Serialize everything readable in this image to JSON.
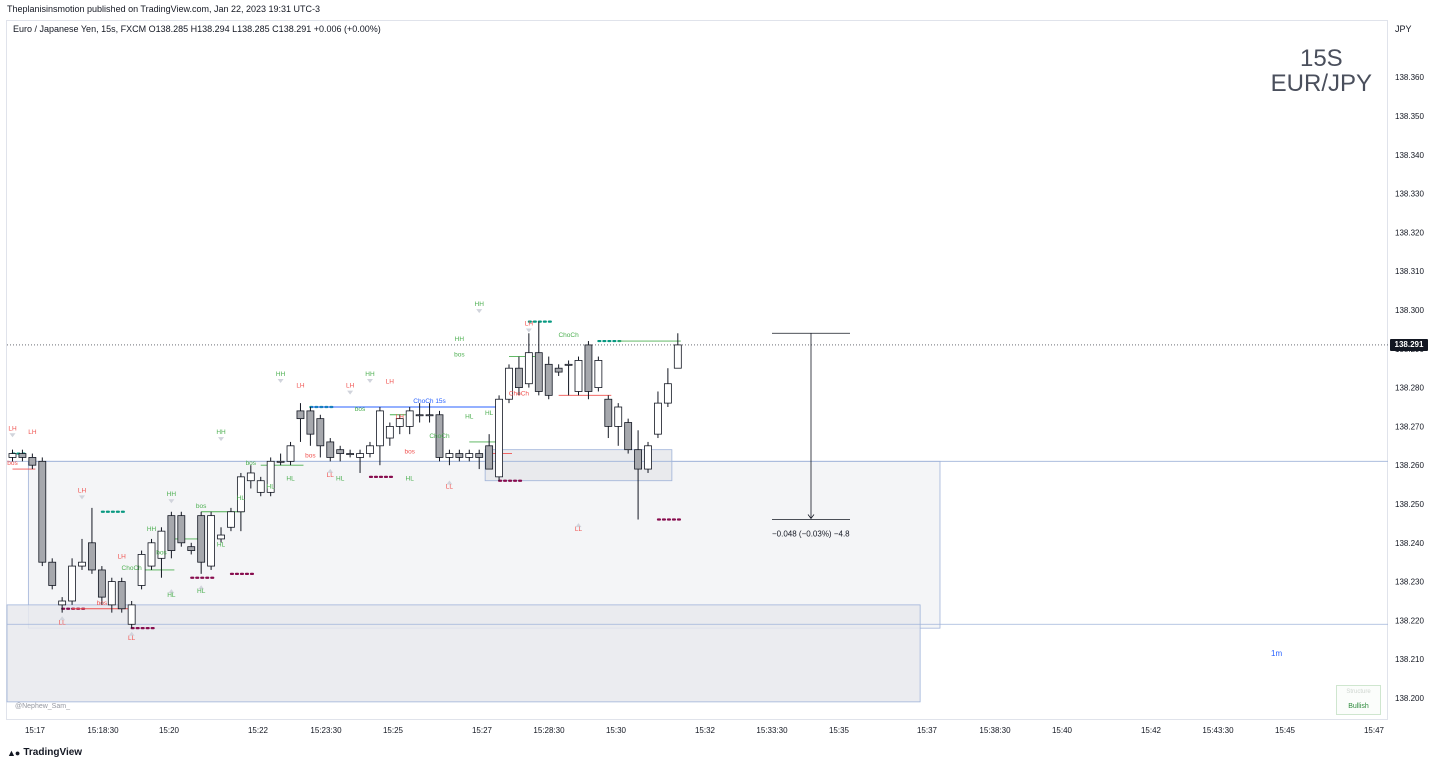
{
  "header": {
    "published_text": "Theplanisinsmotion published on TradingView.com, Jan 22, 2023 19:31 UTC-3",
    "legend_text": "Euro / Japanese Yen, 15s, FXCM  O138.285  H138.294  L138.285  C138.291  +0.006 (+0.00%)"
  },
  "watermark": {
    "line1": "15S",
    "line2": "EUR/JPY"
  },
  "y_axis": {
    "unit": "JPY",
    "current_price_label": "138.291"
  },
  "measure_label": "−0.048 (−0.03%) −4.8",
  "timeframe_label": "1m",
  "status_box": {
    "line1": "Structure",
    "line2": "Bullish"
  },
  "credit": "@Nephew_Sam_",
  "footer": {
    "brand": "TradingView",
    "logo_icon": "tradingview-logo-icon"
  },
  "colors": {
    "bull": "#ffffff",
    "bear": "#a6a8ad",
    "candle_border": "#131722",
    "green": "#4caf50",
    "red": "#f05350",
    "blue": "#2962ff",
    "zone": "#e9eaee"
  },
  "chart_data": {
    "type": "candlestick",
    "symbol": "EUR/JPY",
    "interval": "15s",
    "ylim": [
      138.195,
      138.372
    ],
    "y_ticks": [
      138.2,
      138.21,
      138.22,
      138.23,
      138.24,
      138.25,
      138.26,
      138.27,
      138.28,
      138.29,
      138.3,
      138.31,
      138.32,
      138.33,
      138.34,
      138.35,
      138.36
    ],
    "x_ticks": [
      "15:17",
      "15:18:30",
      "15:20",
      "15:22",
      "15:23:30",
      "15:25",
      "15:27",
      "15:28:30",
      "15:30",
      "15:32",
      "15:33:30",
      "15:35",
      "15:37",
      "15:38:30",
      "15:40",
      "15:42",
      "15:43:30",
      "15:45",
      "15:47"
    ],
    "candles": [
      {
        "o": 138.262,
        "h": 138.264,
        "l": 138.261,
        "c": 138.263
      },
      {
        "o": 138.263,
        "h": 138.264,
        "l": 138.261,
        "c": 138.262
      },
      {
        "o": 138.262,
        "h": 138.263,
        "l": 138.259,
        "c": 138.26
      },
      {
        "o": 138.261,
        "h": 138.262,
        "l": 138.234,
        "c": 138.235
      },
      {
        "o": 138.235,
        "h": 138.236,
        "l": 138.228,
        "c": 138.229
      },
      {
        "o": 138.224,
        "h": 138.226,
        "l": 138.222,
        "c": 138.225
      },
      {
        "o": 138.225,
        "h": 138.236,
        "l": 138.224,
        "c": 138.234
      },
      {
        "o": 138.234,
        "h": 138.241,
        "l": 138.233,
        "c": 138.235
      },
      {
        "o": 138.24,
        "h": 138.249,
        "l": 138.232,
        "c": 138.233
      },
      {
        "o": 138.233,
        "h": 138.234,
        "l": 138.224,
        "c": 138.226
      },
      {
        "o": 138.224,
        "h": 138.231,
        "l": 138.222,
        "c": 138.23
      },
      {
        "o": 138.23,
        "h": 138.231,
        "l": 138.222,
        "c": 138.223
      },
      {
        "o": 138.219,
        "h": 138.225,
        "l": 138.218,
        "c": 138.224
      },
      {
        "o": 138.229,
        "h": 138.238,
        "l": 138.228,
        "c": 138.237
      },
      {
        "o": 138.234,
        "h": 138.241,
        "l": 138.233,
        "c": 138.24
      },
      {
        "o": 138.236,
        "h": 138.244,
        "l": 138.231,
        "c": 138.243
      },
      {
        "o": 138.247,
        "h": 138.248,
        "l": 138.236,
        "c": 138.238
      },
      {
        "o": 138.247,
        "h": 138.248,
        "l": 138.239,
        "c": 138.24
      },
      {
        "o": 138.239,
        "h": 138.24,
        "l": 138.237,
        "c": 138.238
      },
      {
        "o": 138.247,
        "h": 138.248,
        "l": 138.232,
        "c": 138.235
      },
      {
        "o": 138.234,
        "h": 138.248,
        "l": 138.233,
        "c": 138.247
      },
      {
        "o": 138.241,
        "h": 138.244,
        "l": 138.24,
        "c": 138.242
      },
      {
        "o": 138.244,
        "h": 138.249,
        "l": 138.243,
        "c": 138.248
      },
      {
        "o": 138.248,
        "h": 138.258,
        "l": 138.243,
        "c": 138.257
      },
      {
        "o": 138.256,
        "h": 138.26,
        "l": 138.254,
        "c": 138.258
      },
      {
        "o": 138.253,
        "h": 138.257,
        "l": 138.252,
        "c": 138.256
      },
      {
        "o": 138.253,
        "h": 138.262,
        "l": 138.252,
        "c": 138.261
      },
      {
        "o": 138.261,
        "h": 138.263,
        "l": 138.26,
        "c": 138.261
      },
      {
        "o": 138.261,
        "h": 138.266,
        "l": 138.26,
        "c": 138.265
      },
      {
        "o": 138.274,
        "h": 138.276,
        "l": 138.266,
        "c": 138.272
      },
      {
        "o": 138.274,
        "h": 138.275,
        "l": 138.265,
        "c": 138.268
      },
      {
        "o": 138.272,
        "h": 138.273,
        "l": 138.262,
        "c": 138.265
      },
      {
        "o": 138.266,
        "h": 138.267,
        "l": 138.261,
        "c": 138.262
      },
      {
        "o": 138.264,
        "h": 138.265,
        "l": 138.261,
        "c": 138.263
      },
      {
        "o": 138.263,
        "h": 138.264,
        "l": 138.262,
        "c": 138.263
      },
      {
        "o": 138.262,
        "h": 138.264,
        "l": 138.258,
        "c": 138.263
      },
      {
        "o": 138.263,
        "h": 138.266,
        "l": 138.262,
        "c": 138.265
      },
      {
        "o": 138.265,
        "h": 138.275,
        "l": 138.26,
        "c": 138.274
      },
      {
        "o": 138.267,
        "h": 138.271,
        "l": 138.265,
        "c": 138.27
      },
      {
        "o": 138.27,
        "h": 138.273,
        "l": 138.268,
        "c": 138.272
      },
      {
        "o": 138.27,
        "h": 138.275,
        "l": 138.268,
        "c": 138.274
      },
      {
        "o": 138.273,
        "h": 138.276,
        "l": 138.271,
        "c": 138.273
      },
      {
        "o": 138.273,
        "h": 138.276,
        "l": 138.271,
        "c": 138.273
      },
      {
        "o": 138.273,
        "h": 138.274,
        "l": 138.261,
        "c": 138.262
      },
      {
        "o": 138.262,
        "h": 138.264,
        "l": 138.26,
        "c": 138.263
      },
      {
        "o": 138.263,
        "h": 138.264,
        "l": 138.261,
        "c": 138.262
      },
      {
        "o": 138.262,
        "h": 138.264,
        "l": 138.261,
        "c": 138.263
      },
      {
        "o": 138.263,
        "h": 138.264,
        "l": 138.259,
        "c": 138.262
      },
      {
        "o": 138.265,
        "h": 138.268,
        "l": 138.259,
        "c": 138.259
      },
      {
        "o": 138.257,
        "h": 138.278,
        "l": 138.256,
        "c": 138.277
      },
      {
        "o": 138.277,
        "h": 138.286,
        "l": 138.276,
        "c": 138.285
      },
      {
        "o": 138.285,
        "h": 138.288,
        "l": 138.278,
        "c": 138.28
      },
      {
        "o": 138.281,
        "h": 138.294,
        "l": 138.28,
        "c": 138.289
      },
      {
        "o": 138.289,
        "h": 138.297,
        "l": 138.278,
        "c": 138.279
      },
      {
        "o": 138.286,
        "h": 138.288,
        "l": 138.277,
        "c": 138.278
      },
      {
        "o": 138.285,
        "h": 138.286,
        "l": 138.283,
        "c": 138.284
      },
      {
        "o": 138.286,
        "h": 138.287,
        "l": 138.278,
        "c": 138.286
      },
      {
        "o": 138.279,
        "h": 138.288,
        "l": 138.278,
        "c": 138.287
      },
      {
        "o": 138.291,
        "h": 138.292,
        "l": 138.277,
        "c": 138.279
      },
      {
        "o": 138.28,
        "h": 138.288,
        "l": 138.279,
        "c": 138.287
      },
      {
        "o": 138.277,
        "h": 138.278,
        "l": 138.267,
        "c": 138.27
      },
      {
        "o": 138.27,
        "h": 138.276,
        "l": 138.265,
        "c": 138.275
      },
      {
        "o": 138.271,
        "h": 138.272,
        "l": 138.263,
        "c": 138.264
      },
      {
        "o": 138.264,
        "h": 138.269,
        "l": 138.246,
        "c": 138.259
      },
      {
        "o": 138.259,
        "h": 138.266,
        "l": 138.258,
        "c": 138.265
      },
      {
        "o": 138.268,
        "h": 138.279,
        "l": 138.267,
        "c": 138.276
      },
      {
        "o": 138.276,
        "h": 138.285,
        "l": 138.275,
        "c": 138.281
      },
      {
        "o": 138.285,
        "h": 138.294,
        "l": 138.285,
        "c": 138.291
      }
    ],
    "current_price": 138.291,
    "zones": [
      {
        "from_bar": 2,
        "to_bar": 93,
        "top": 138.261,
        "bottom": 138.218
      },
      {
        "from_bar": -2,
        "to_bar": 91,
        "top": 138.224,
        "bottom": 138.199
      },
      {
        "from_bar": 48,
        "to_bar": 66,
        "top": 138.264,
        "bottom": 138.256
      }
    ],
    "levels": [
      {
        "from_bar": 0,
        "to_bar": 1,
        "price": 138.263,
        "color": "#089981",
        "style": "dots"
      },
      {
        "from_bar": 9,
        "to_bar": 11,
        "price": 138.248,
        "color": "#089981",
        "style": "dots"
      },
      {
        "from_bar": 5,
        "to_bar": 7,
        "price": 138.223,
        "color": "#880e4f",
        "style": "dots"
      },
      {
        "from_bar": 12,
        "to_bar": 14,
        "price": 138.218,
        "color": "#880e4f",
        "style": "dots"
      },
      {
        "from_bar": 18,
        "to_bar": 20,
        "price": 138.231,
        "color": "#880e4f",
        "style": "dots"
      },
      {
        "from_bar": 22,
        "to_bar": 24,
        "price": 138.232,
        "color": "#880e4f",
        "style": "dots"
      },
      {
        "from_bar": 30,
        "to_bar": 32,
        "price": 138.275,
        "color": "#089981",
        "style": "dots"
      },
      {
        "from_bar": 36,
        "to_bar": 38,
        "price": 138.257,
        "color": "#880e4f",
        "style": "dots"
      },
      {
        "from_bar": 49,
        "to_bar": 51,
        "price": 138.256,
        "color": "#880e4f",
        "style": "dots"
      },
      {
        "from_bar": 52,
        "to_bar": 54,
        "price": 138.297,
        "color": "#089981",
        "style": "dots"
      },
      {
        "from_bar": 59,
        "to_bar": 61,
        "price": 138.292,
        "color": "#089981",
        "style": "dots"
      },
      {
        "from_bar": 65,
        "to_bar": 67,
        "price": 138.246,
        "color": "#880e4f",
        "style": "dots"
      },
      {
        "from_bar": 0,
        "to_bar": 2,
        "price": 138.259,
        "color": "#f05350",
        "style": "solid"
      },
      {
        "from_bar": 6,
        "to_bar": 12,
        "price": 138.223,
        "color": "#f05350",
        "style": "solid"
      },
      {
        "from_bar": 13,
        "to_bar": 16,
        "price": 138.233,
        "color": "#4caf50",
        "style": "solid"
      },
      {
        "from_bar": 16,
        "to_bar": 19,
        "price": 138.241,
        "color": "#4caf50",
        "style": "solid"
      },
      {
        "from_bar": 19,
        "to_bar": 23,
        "price": 138.248,
        "color": "#4caf50",
        "style": "solid"
      },
      {
        "from_bar": 25,
        "to_bar": 29,
        "price": 138.26,
        "color": "#4caf50",
        "style": "solid"
      },
      {
        "from_bar": 30,
        "to_bar": 49,
        "price": 138.275,
        "color": "#2962ff",
        "style": "solid"
      },
      {
        "from_bar": 38,
        "to_bar": 40,
        "price": 138.273,
        "color": "#4caf50",
        "style": "solid"
      },
      {
        "from_bar": 46,
        "to_bar": 49,
        "price": 138.266,
        "color": "#4caf50",
        "style": "solid"
      },
      {
        "from_bar": 48,
        "to_bar": 50,
        "price": 138.263,
        "color": "#f05350",
        "style": "solid"
      },
      {
        "from_bar": 50,
        "to_bar": 53,
        "price": 138.288,
        "color": "#4caf50",
        "style": "solid"
      },
      {
        "from_bar": 55,
        "to_bar": 60,
        "price": 138.278,
        "color": "#f05350",
        "style": "solid"
      },
      {
        "from_bar": 61,
        "to_bar": 67,
        "price": 138.292,
        "color": "#4caf50",
        "style": "solid"
      }
    ],
    "annotations": [
      {
        "bar": 0,
        "price": 138.269,
        "text": "LH",
        "color": "#f05350",
        "marker": "down"
      },
      {
        "bar": 2,
        "price": 138.268,
        "text": "LH",
        "color": "#f05350"
      },
      {
        "bar": 0,
        "price": 138.26,
        "text": "bos",
        "color": "#f05350"
      },
      {
        "bar": 7,
        "price": 138.253,
        "text": "LH",
        "color": "#f05350",
        "marker": "down"
      },
      {
        "bar": 5,
        "price": 138.219,
        "text": "LL",
        "color": "#f05350",
        "marker": "up"
      },
      {
        "bar": 9,
        "price": 138.224,
        "text": "bos",
        "color": "#f05350"
      },
      {
        "bar": 11,
        "price": 138.236,
        "text": "LH",
        "color": "#f05350"
      },
      {
        "bar": 12,
        "price": 138.215,
        "text": "LL",
        "color": "#f05350",
        "marker": "up"
      },
      {
        "bar": 12,
        "price": 138.233,
        "text": "ChoCh",
        "color": "#4caf50"
      },
      {
        "bar": 14,
        "price": 138.243,
        "text": "HH",
        "color": "#4caf50"
      },
      {
        "bar": 15,
        "price": 138.237,
        "text": "bos",
        "color": "#4caf50"
      },
      {
        "bar": 16,
        "price": 138.252,
        "text": "HH",
        "color": "#4caf50",
        "marker": "down"
      },
      {
        "bar": 16,
        "price": 138.226,
        "text": "HL",
        "color": "#4caf50",
        "marker": "up"
      },
      {
        "bar": 19,
        "price": 138.249,
        "text": "bos",
        "color": "#4caf50"
      },
      {
        "bar": 19,
        "price": 138.227,
        "text": "HL",
        "color": "#4caf50",
        "marker": "up"
      },
      {
        "bar": 21,
        "price": 138.239,
        "text": "HL",
        "color": "#4caf50"
      },
      {
        "bar": 21,
        "price": 138.268,
        "text": "HH",
        "color": "#4caf50",
        "marker": "down"
      },
      {
        "bar": 23,
        "price": 138.251,
        "text": "HL",
        "color": "#4caf50"
      },
      {
        "bar": 24,
        "price": 138.26,
        "text": "bos",
        "color": "#4caf50"
      },
      {
        "bar": 26,
        "price": 138.254,
        "text": "HL",
        "color": "#4caf50"
      },
      {
        "bar": 27,
        "price": 138.283,
        "text": "HH",
        "color": "#4caf50",
        "marker": "down"
      },
      {
        "bar": 28,
        "price": 138.256,
        "text": "HL",
        "color": "#4caf50"
      },
      {
        "bar": 29,
        "price": 138.28,
        "text": "LH",
        "color": "#f05350"
      },
      {
        "bar": 30,
        "price": 138.262,
        "text": "bos",
        "color": "#f05350"
      },
      {
        "bar": 32,
        "price": 138.257,
        "text": "LL",
        "color": "#f05350",
        "marker": "up"
      },
      {
        "bar": 33,
        "price": 138.256,
        "text": "HL",
        "color": "#4caf50"
      },
      {
        "bar": 34,
        "price": 138.28,
        "text": "LH",
        "color": "#f05350",
        "marker": "down"
      },
      {
        "bar": 35,
        "price": 138.274,
        "text": "bos",
        "color": "#4caf50"
      },
      {
        "bar": 36,
        "price": 138.283,
        "text": "HH",
        "color": "#4caf50",
        "marker": "down"
      },
      {
        "bar": 38,
        "price": 138.281,
        "text": "LH",
        "color": "#f05350"
      },
      {
        "bar": 39,
        "price": 138.272,
        "text": "LH",
        "color": "#f05350"
      },
      {
        "bar": 40,
        "price": 138.256,
        "text": "HL",
        "color": "#4caf50"
      },
      {
        "bar": 40,
        "price": 138.263,
        "text": "bos",
        "color": "#f05350"
      },
      {
        "bar": 42,
        "price": 138.276,
        "text": "ChoCh 15s",
        "color": "#2962ff"
      },
      {
        "bar": 43,
        "price": 138.267,
        "text": "ChoCh",
        "color": "#4caf50"
      },
      {
        "bar": 44,
        "price": 138.254,
        "text": "LL",
        "color": "#f05350",
        "marker": "up"
      },
      {
        "bar": 45,
        "price": 138.288,
        "text": "bos",
        "color": "#4caf50"
      },
      {
        "bar": 45,
        "price": 138.292,
        "text": "HH",
        "color": "#4caf50"
      },
      {
        "bar": 46,
        "price": 138.272,
        "text": "HL",
        "color": "#4caf50"
      },
      {
        "bar": 47,
        "price": 138.301,
        "text": "HH",
        "color": "#4caf50",
        "marker": "down"
      },
      {
        "bar": 48,
        "price": 138.273,
        "text": "HL",
        "color": "#4caf50"
      },
      {
        "bar": 51,
        "price": 138.278,
        "text": "ChoCh",
        "color": "#f05350"
      },
      {
        "bar": 52,
        "price": 138.296,
        "text": "LH",
        "color": "#f05350",
        "marker": "down"
      },
      {
        "bar": 56,
        "price": 138.293,
        "text": "ChoCh",
        "color": "#4caf50"
      },
      {
        "bar": 57,
        "price": 138.243,
        "text": "LL",
        "color": "#f05350",
        "marker": "up"
      }
    ],
    "measure": {
      "from_price": 138.294,
      "to_price": 138.246,
      "change": -0.048,
      "percent": -0.03,
      "pips": -4.8
    }
  }
}
